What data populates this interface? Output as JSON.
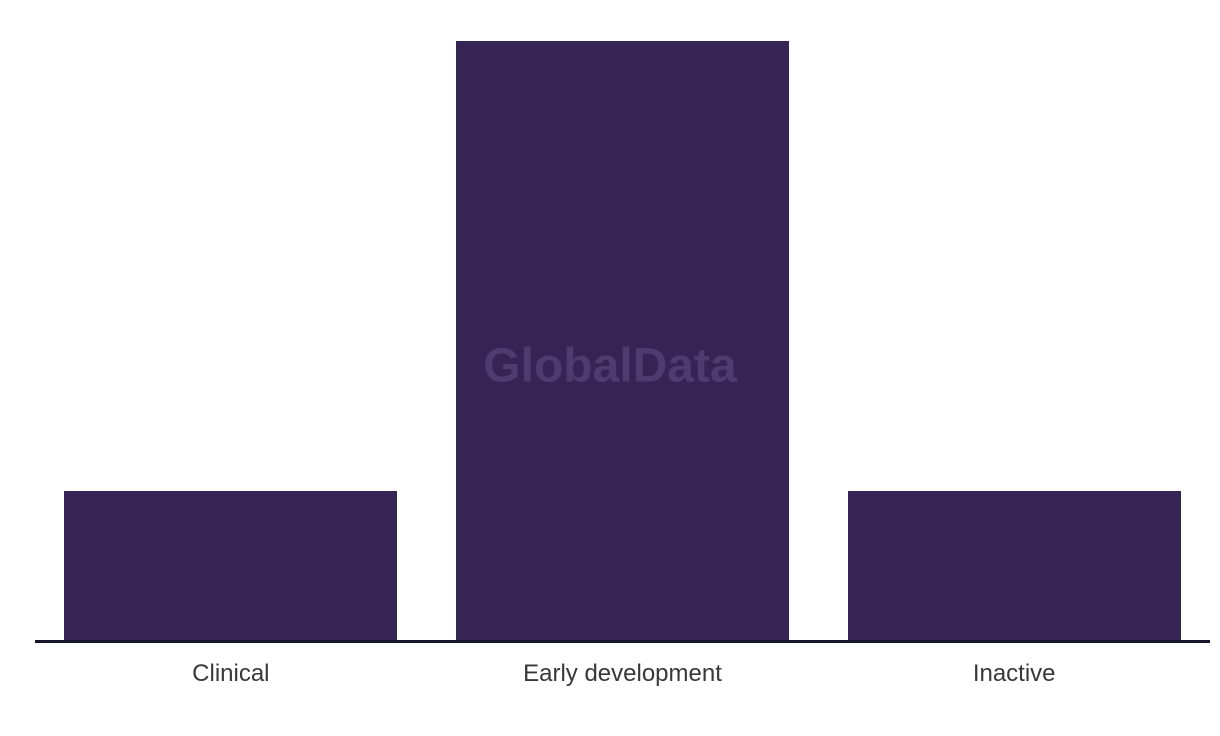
{
  "page": {
    "background": "#ffffff"
  },
  "chart_data": {
    "type": "bar",
    "title": "",
    "categories": [
      "Clinical",
      "Early development",
      "Inactive"
    ],
    "values": [
      1,
      4,
      1
    ],
    "value_scale": "relative (no y-axis or data labels shown; bar pixel heights ~149 : 600 : 149)",
    "xlabel": "",
    "ylabel": "",
    "y_axis_visible": false,
    "grid": false,
    "legend": "none",
    "colors": {
      "bar_fill": "#362554",
      "axis_line": "#15142B",
      "label_text": "#383838",
      "watermark_text": "#4D3C6E",
      "background": "#ffffff"
    },
    "watermark": {
      "text": "GlobalData"
    }
  }
}
